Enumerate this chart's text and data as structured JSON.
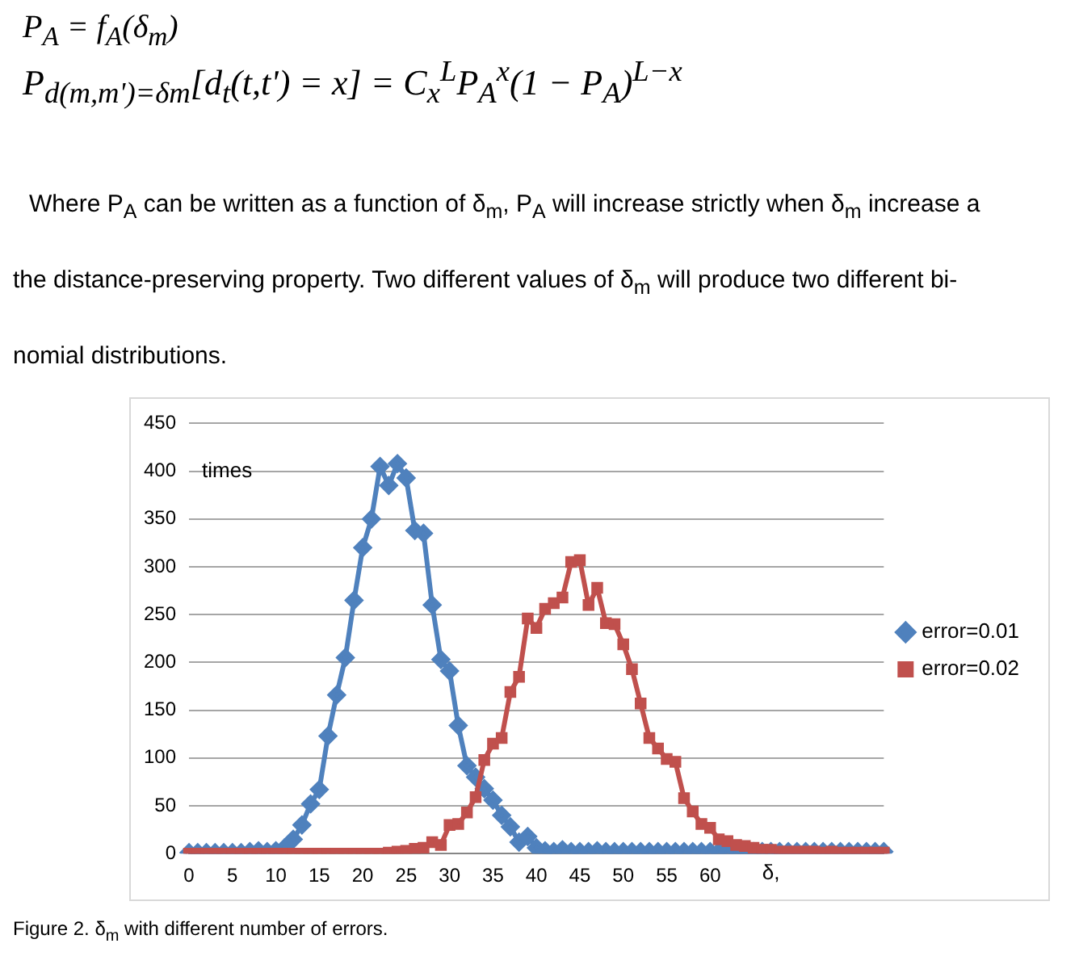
{
  "chart_data": {
    "type": "line",
    "xlabel": "δ,",
    "ylabel": "times",
    "annotations": [
      "P$_{A}$ = f$_{A}$(δ$_{m}$)",
      "P$_{d(m,m')=δm}$[d$_{t}$(t,t') = x] = C$_{x}$$^{L}$P$_{A}$$^{x}$(1 − P$_{A}$)$^{L−x}$",
      "Where P$_{A}$ can be written as a function of δ$_{m}$, P$_{A}$ will increase strictly when δ$_{m}$ increase a",
      "the distance-preserving property. Two different values of δ$_{m}$ will produce two different bi-",
      "nomial distributions.",
      "Figure 2. δ$_{m}$ with different number of errors."
    ],
    "categories": [
      "0",
      null,
      null,
      null,
      null,
      "5",
      null,
      null,
      null,
      null,
      "10",
      null,
      null,
      null,
      null,
      "15",
      null,
      null,
      null,
      null,
      "20",
      null,
      null,
      null,
      null,
      "25",
      null,
      null,
      null,
      null,
      "30",
      null,
      null,
      null,
      null,
      "35",
      null,
      null,
      null,
      null,
      "40",
      null,
      null,
      null,
      null,
      "45",
      null,
      null,
      null,
      null,
      "50",
      null,
      null,
      null,
      null,
      "55",
      null,
      null,
      null,
      null,
      "60",
      null,
      null,
      null,
      null,
      null,
      null,
      null,
      null,
      null,
      null,
      null,
      null,
      null,
      null,
      null,
      null,
      null,
      null,
      null,
      null
    ],
    "series": [
      {
        "name": "error=0.01",
        "color": "#4f81bd",
        "marker": "diamond",
        "values": [
          1,
          1,
          1,
          1,
          1,
          1,
          1,
          2,
          3,
          2,
          3,
          6,
          15,
          30,
          52,
          67,
          123,
          166,
          205,
          265,
          320,
          350,
          405,
          385,
          408,
          393,
          338,
          335,
          260,
          203,
          191,
          134,
          92,
          80,
          68,
          56,
          40,
          28,
          12,
          18,
          6,
          3,
          2,
          4,
          2,
          2,
          2,
          3,
          2,
          2,
          2,
          2,
          2,
          2,
          2,
          2,
          2,
          2,
          2,
          2,
          2,
          2,
          2,
          2,
          2,
          2,
          2,
          2,
          2,
          2,
          2,
          2,
          2,
          2,
          2,
          2,
          2,
          2,
          2,
          2,
          2
        ]
      },
      {
        "name": "error=0.02",
        "color": "#c0504d",
        "marker": "square",
        "values": [
          0,
          0,
          0,
          0,
          0,
          0,
          0,
          0,
          0,
          0,
          0,
          0,
          0,
          0,
          0,
          0,
          0,
          0,
          0,
          0,
          0,
          0,
          0,
          1,
          2,
          3,
          5,
          6,
          12,
          9,
          30,
          31,
          43,
          59,
          98,
          115,
          121,
          169,
          185,
          246,
          236,
          256,
          262,
          268,
          305,
          307,
          260,
          278,
          241,
          240,
          219,
          193,
          157,
          121,
          110,
          99,
          96,
          58,
          44,
          31,
          27,
          15,
          13,
          9,
          8,
          6,
          4,
          4,
          2,
          2,
          2,
          2,
          2,
          1,
          2,
          1,
          1,
          1,
          1,
          1,
          1
        ]
      }
    ],
    "ylim": [
      0,
      450
    ],
    "yticks": [
      0,
      50,
      100,
      150,
      200,
      250,
      300,
      350,
      400,
      450
    ],
    "grid": "y",
    "legend": "right",
    "line_style": "solid"
  }
}
